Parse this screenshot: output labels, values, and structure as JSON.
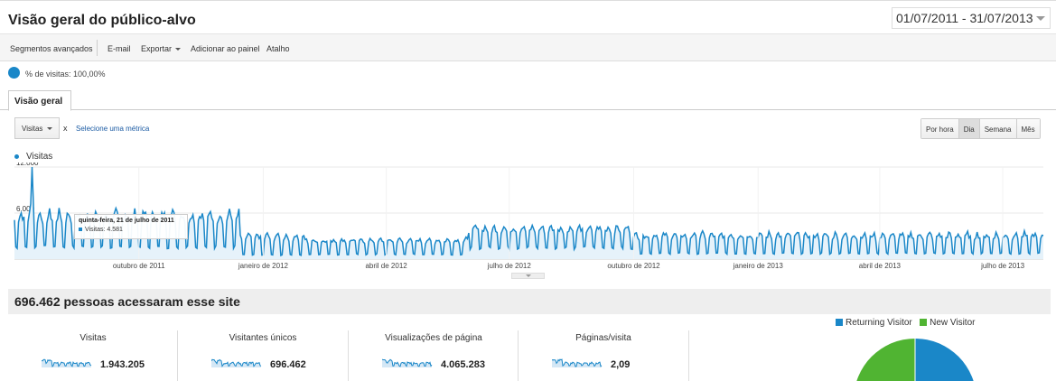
{
  "header": {
    "title": "Visão geral do público-alvo",
    "date_range": "01/07/2011 - 31/07/2013"
  },
  "toolbar": {
    "advanced_segments": "Segmentos avançados",
    "email": "E-mail",
    "export": "Exportar",
    "add_dashboard": "Adicionar ao painel",
    "shortcut": "Atalho"
  },
  "segment": {
    "label": "% de visitas: 100,00%"
  },
  "tabs": {
    "overview": "Visão geral"
  },
  "metric_picker": {
    "selected": "Visitas",
    "remove": "x",
    "select_metric": "Selecione uma métrica"
  },
  "granularity": {
    "options": [
      "Por hora",
      "Dia",
      "Semana",
      "Mês"
    ],
    "active": "Dia"
  },
  "chart_data": {
    "type": "line",
    "series": [
      {
        "name": "Visitas",
        "color": "#1a87c8"
      }
    ],
    "y_ticks": [
      "12.000",
      "6.000"
    ],
    "ylim": [
      0,
      12000
    ],
    "x_labels": [
      "outubro de 2011",
      "janeiro de 2012",
      "abril de 2012",
      "julho de 2012",
      "outubro de 2012",
      "janeiro de 2013",
      "abril de 2013",
      "julho de 2013"
    ],
    "x_range": [
      "2011-07-01",
      "2013-07-31"
    ],
    "weekly_pattern": "weekday peaks, weekend dips",
    "trend_segments": [
      {
        "from": "2011-07-01",
        "to": "2011-12-15",
        "peak": 6000,
        "trough": 1500,
        "max_spike": 12000,
        "max_spike_date": "2011-07-14"
      },
      {
        "from": "2011-12-15",
        "to": "2012-02-01",
        "peak": 3200,
        "trough": 500
      },
      {
        "from": "2012-02-01",
        "to": "2012-06-01",
        "peak": 2600,
        "trough": 600
      },
      {
        "from": "2012-06-01",
        "to": "2012-10-01",
        "peak": 4200,
        "trough": 1400
      },
      {
        "from": "2012-10-01",
        "to": "2013-07-31",
        "peak": 3300,
        "trough": 700
      }
    ],
    "tooltip": {
      "date": "quinta-feira, 21 de julho de 2011",
      "series": "Visitas",
      "value": "4.581"
    }
  },
  "summary": {
    "banner": "696.462 pessoas acessaram esse site",
    "stats": [
      {
        "label": "Visitas",
        "value": "1.943.205"
      },
      {
        "label": "Visitantes únicos",
        "value": "696.462"
      },
      {
        "label": "Visualizações de página",
        "value": "4.065.283"
      },
      {
        "label": "Páginas/visita",
        "value": "2,09"
      }
    ]
  },
  "pie": {
    "legend": [
      {
        "name": "Returning Visitor",
        "color": "#1a87c8"
      },
      {
        "name": "New Visitor",
        "color": "#50b432"
      }
    ]
  }
}
